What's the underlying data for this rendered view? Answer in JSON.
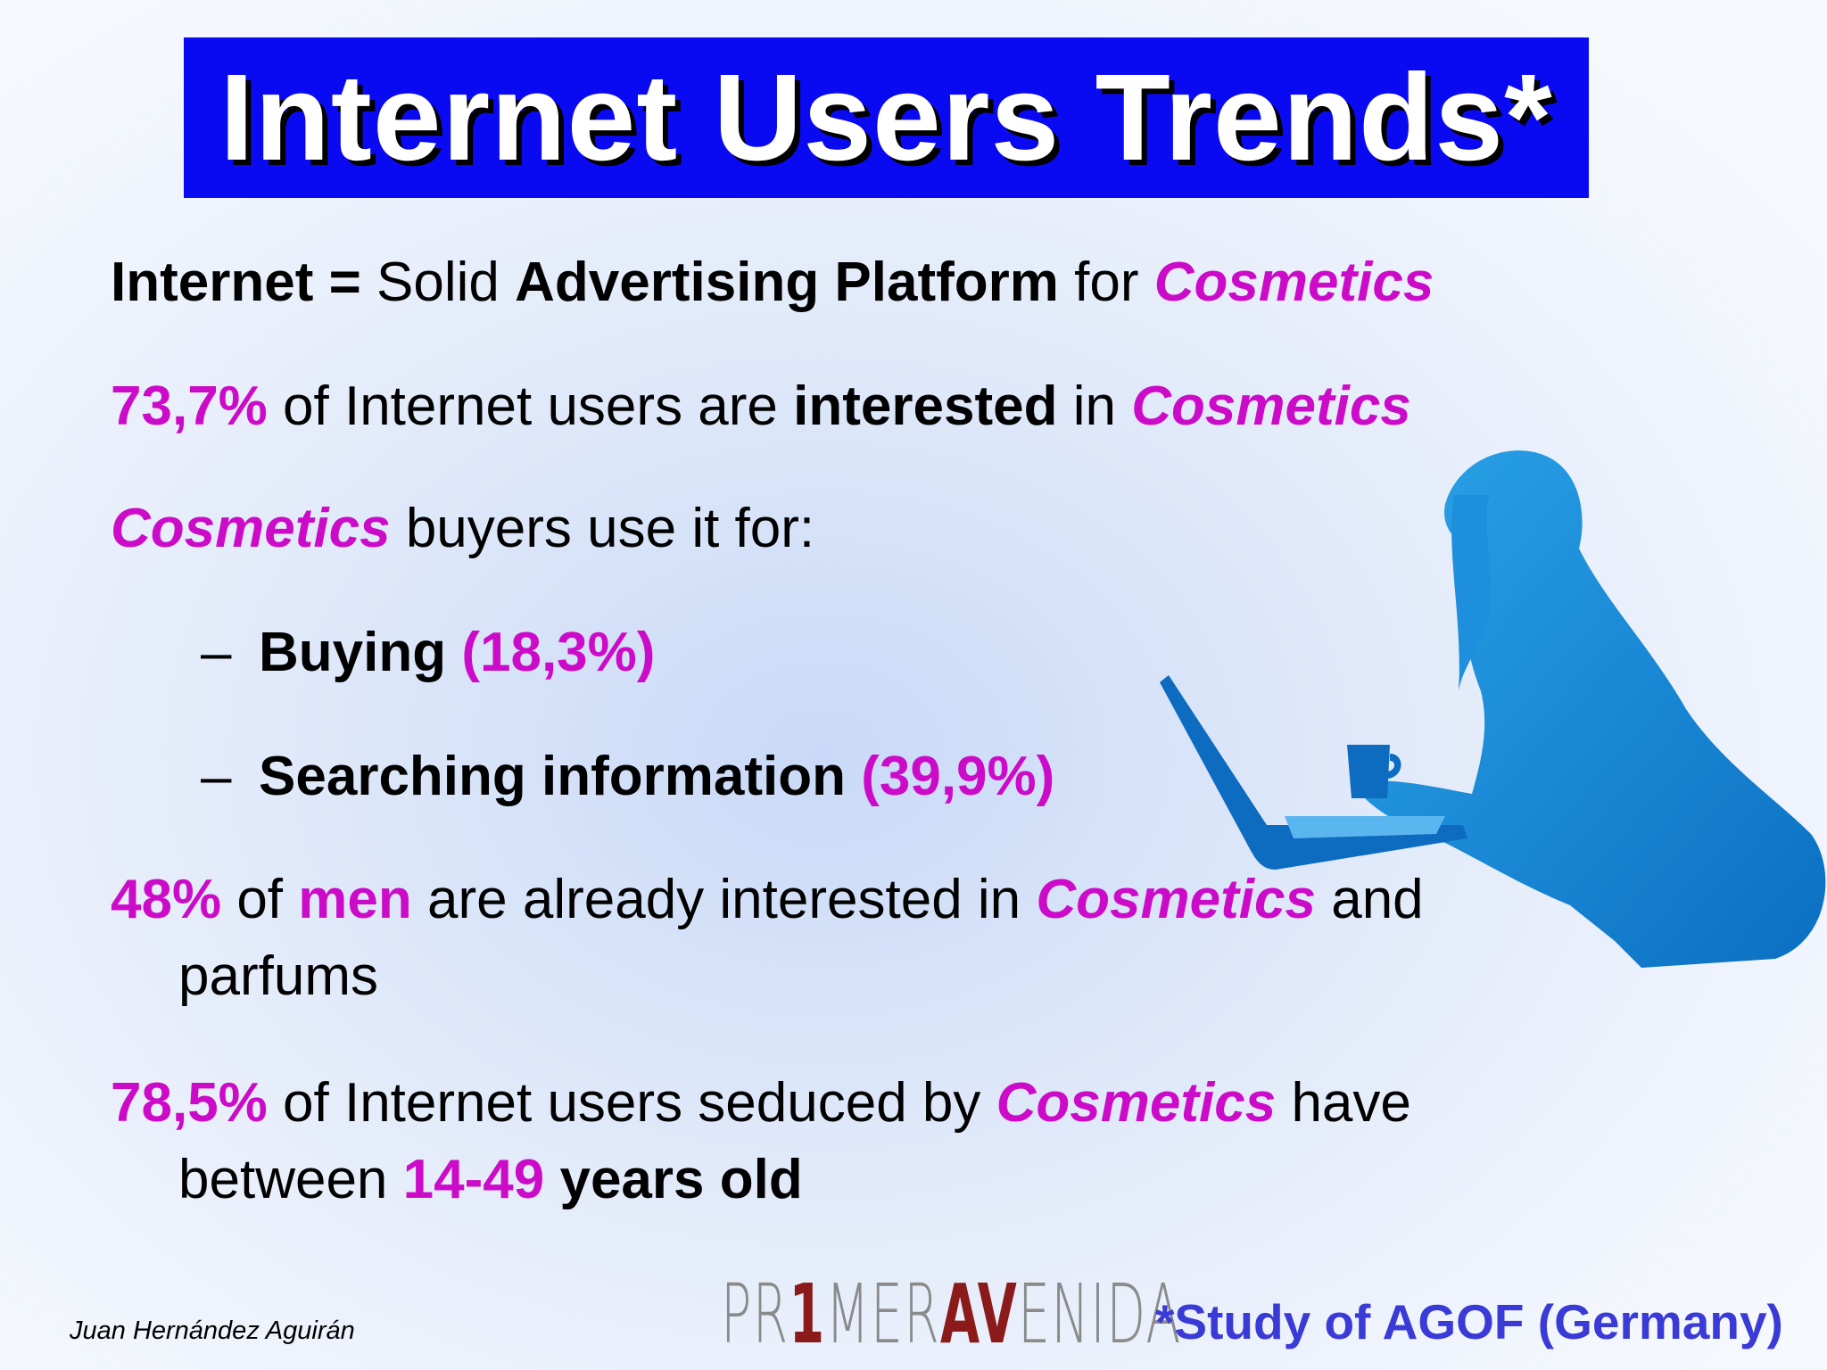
{
  "title": "Internet Users Trends*",
  "bullets": [
    [
      "Internet =",
      "Solid",
      "Advertising Platform",
      "for",
      "Cosmetics"
    ],
    [
      "73,7%",
      "of Internet users are",
      "interested",
      "in",
      "Cosmetics"
    ],
    [
      "Cosmetics",
      "buyers use it for:"
    ],
    [
      "48%",
      "of",
      "men",
      "are already interested in",
      "Cosmetics",
      "and parfums"
    ],
    [
      "78,5%",
      "of Internet users seduced by",
      "Cosmetics",
      "have between",
      "14-49",
      "years old"
    ]
  ],
  "sub_bullets": [
    [
      "–",
      "Buying",
      "(18,3%)"
    ],
    [
      "–",
      "Searching information",
      "(39,9%)"
    ]
  ],
  "footer": {
    "author": "Juan Hernández Aguirán",
    "logo": [
      "PR",
      "1",
      "MER",
      "AV",
      "ENIDA"
    ],
    "source": "*Study of AGOF (Germany)"
  }
}
